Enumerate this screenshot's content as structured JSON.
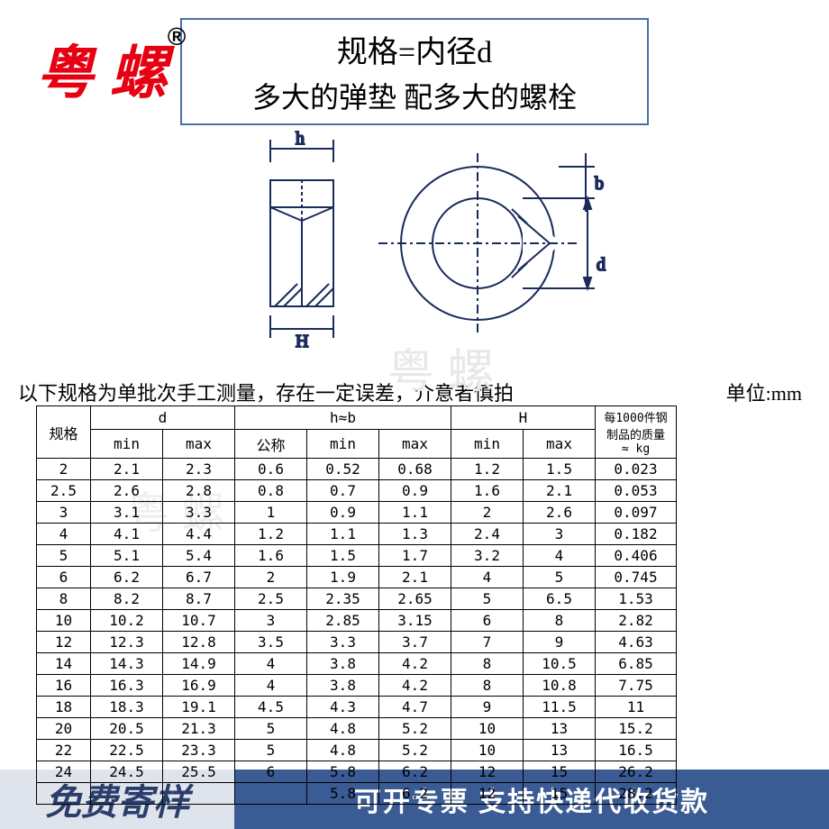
{
  "logo": {
    "text": "粤 螺",
    "registered": "®"
  },
  "header": {
    "line1": "规格=内径d",
    "line2": "多大的弹垫 配多大的螺栓"
  },
  "diagram": {
    "labels": {
      "h": "h",
      "b": "b",
      "d": "d",
      "H": "H"
    },
    "colors": {
      "stroke": "#1a2b5c",
      "fill_hatch": "#1a2b5c"
    }
  },
  "note": "以下规格为单批次手工测量，存在一定误差，介意者慎拍",
  "unit": "单位:mm",
  "watermark_faint": "粤 螺",
  "table": {
    "header": {
      "spec": "规格",
      "d": "d",
      "hb": "h≈b",
      "H": "H",
      "kg": "每1000件钢制品的质量 ≈ kg",
      "min": "min",
      "max": "max",
      "nominal": "公称"
    },
    "columns_widths": {
      "spec": 60,
      "d_min": 80,
      "d_max": 80,
      "hb_nom": 80,
      "hb_min": 80,
      "hb_max": 80,
      "H_min": 80,
      "H_max": 80,
      "kg": 90
    },
    "rows": [
      [
        "2",
        "2.1",
        "2.3",
        "0.6",
        "0.52",
        "0.68",
        "1.2",
        "1.5",
        "0.023"
      ],
      [
        "2.5",
        "2.6",
        "2.8",
        "0.8",
        "0.7",
        "0.9",
        "1.6",
        "2.1",
        "0.053"
      ],
      [
        "3",
        "3.1",
        "3.3",
        "1",
        "0.9",
        "1.1",
        "2",
        "2.6",
        "0.097"
      ],
      [
        "4",
        "4.1",
        "4.4",
        "1.2",
        "1.1",
        "1.3",
        "2.4",
        "3",
        "0.182"
      ],
      [
        "5",
        "5.1",
        "5.4",
        "1.6",
        "1.5",
        "1.7",
        "3.2",
        "4",
        "0.406"
      ],
      [
        "6",
        "6.2",
        "6.7",
        "2",
        "1.9",
        "2.1",
        "4",
        "5",
        "0.745"
      ],
      [
        "8",
        "8.2",
        "8.7",
        "2.5",
        "2.35",
        "2.65",
        "5",
        "6.5",
        "1.53"
      ],
      [
        "10",
        "10.2",
        "10.7",
        "3",
        "2.85",
        "3.15",
        "6",
        "8",
        "2.82"
      ],
      [
        "12",
        "12.3",
        "12.8",
        "3.5",
        "3.3",
        "3.7",
        "7",
        "9",
        "4.63"
      ],
      [
        "14",
        "14.3",
        "14.9",
        "4",
        "3.8",
        "4.2",
        "8",
        "10.5",
        "6.85"
      ],
      [
        "16",
        "16.3",
        "16.9",
        "4",
        "3.8",
        "4.2",
        "8",
        "10.8",
        "7.75"
      ],
      [
        "18",
        "18.3",
        "19.1",
        "4.5",
        "4.3",
        "4.7",
        "9",
        "11.5",
        "11"
      ],
      [
        "20",
        "20.5",
        "21.3",
        "5",
        "4.8",
        "5.2",
        "10",
        "13",
        "15.2"
      ],
      [
        "22",
        "22.5",
        "23.3",
        "5",
        "4.8",
        "5.2",
        "10",
        "13",
        "16.5"
      ],
      [
        "24",
        "24.5",
        "25.5",
        "6",
        "5.8",
        "6.2",
        "12",
        "15",
        "26.2"
      ],
      [
        "",
        "",
        "",
        "",
        "5.8",
        "6.2",
        "12",
        "15",
        "28.2"
      ]
    ]
  },
  "banner": {
    "left": "免费寄样",
    "right": "可开专票 支持快递代收货款"
  },
  "colors": {
    "logo_red": "#e60012",
    "header_border": "#4a6fa8",
    "banner_left_bg": "#dfe4ec",
    "banner_left_fg": "#2b3e6b",
    "banner_right_bg": "#3a5b94",
    "banner_right_fg": "#ffffff"
  }
}
